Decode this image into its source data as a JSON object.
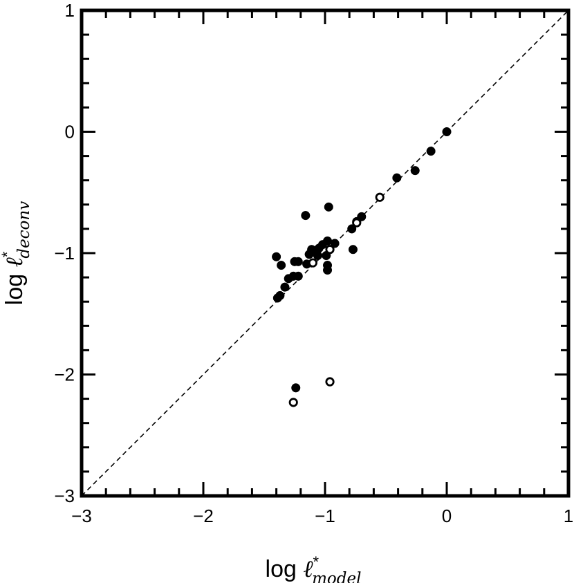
{
  "chart_data": {
    "type": "scatter",
    "title": "",
    "xlabel": {
      "prefix": "log ",
      "symbol": "ℓ",
      "sup": "*",
      "sub": "model"
    },
    "ylabel": {
      "prefix": "log ",
      "symbol": "ℓ",
      "sup": "*",
      "sub": "deconv"
    },
    "xlim": [
      -3,
      1
    ],
    "ylim": [
      -3,
      1
    ],
    "xticks": [
      -3,
      -2,
      -1,
      0,
      1
    ],
    "yticks": [
      -3,
      -2,
      -1,
      0,
      1
    ],
    "xtick_labels": [
      "−3",
      "−2",
      "−1",
      "0",
      "1"
    ],
    "ytick_labels": [
      "−3",
      "−2",
      "−1",
      "0",
      "1"
    ],
    "grid": false,
    "reference_line": {
      "style": "dashed",
      "from": [
        -3,
        -3
      ],
      "to": [
        1,
        1
      ]
    },
    "series": [
      {
        "marker": "filled-circle",
        "color": "#000000",
        "points": [
          [
            0.0,
            0.0
          ],
          [
            -0.13,
            -0.16
          ],
          [
            -0.26,
            -0.32
          ],
          [
            -0.41,
            -0.38
          ],
          [
            -0.7,
            -0.7
          ],
          [
            -0.74,
            -0.74
          ],
          [
            -0.78,
            -0.8
          ],
          [
            -0.77,
            -0.97
          ],
          [
            -0.97,
            -0.62
          ],
          [
            -1.16,
            -0.69
          ],
          [
            -0.92,
            -0.92
          ],
          [
            -0.98,
            -0.9
          ],
          [
            -1.02,
            -0.93
          ],
          [
            -1.05,
            -0.96
          ],
          [
            -1.08,
            -0.98
          ],
          [
            -1.11,
            -0.97
          ],
          [
            -1.13,
            -1.01
          ],
          [
            -1.06,
            -1.02
          ],
          [
            -0.99,
            -1.02
          ],
          [
            -0.98,
            -1.1
          ],
          [
            -0.98,
            -1.14
          ],
          [
            -1.15,
            -1.09
          ],
          [
            -1.22,
            -1.07
          ],
          [
            -1.25,
            -1.07
          ],
          [
            -1.4,
            -1.03
          ],
          [
            -1.36,
            -1.1
          ],
          [
            -1.22,
            -1.19
          ],
          [
            -1.26,
            -1.19
          ],
          [
            -1.3,
            -1.21
          ],
          [
            -1.33,
            -1.28
          ],
          [
            -1.37,
            -1.35
          ],
          [
            -1.39,
            -1.37
          ],
          [
            -1.24,
            -2.11
          ]
        ]
      },
      {
        "marker": "open-circle",
        "color": "#000000",
        "points": [
          [
            -0.55,
            -0.54
          ],
          [
            -0.74,
            -0.75
          ],
          [
            -0.96,
            -0.97
          ],
          [
            -1.1,
            -1.08
          ],
          [
            -0.96,
            -2.06
          ],
          [
            -1.26,
            -2.23
          ]
        ]
      }
    ]
  }
}
